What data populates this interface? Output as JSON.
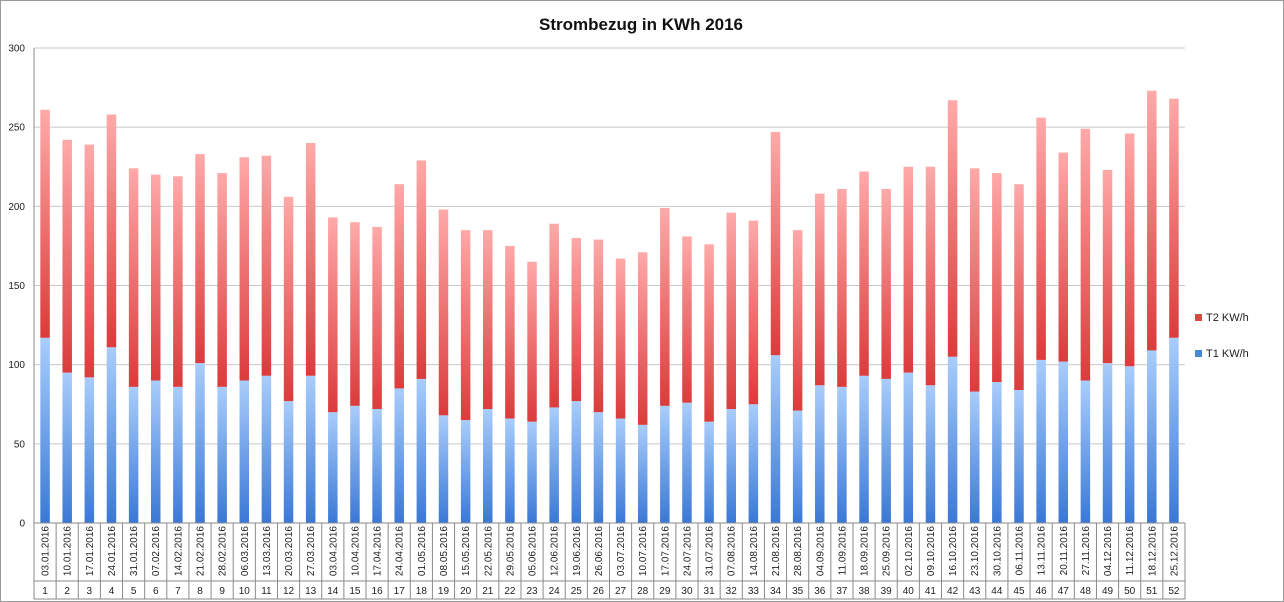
{
  "chart_data": {
    "type": "bar",
    "stacked": true,
    "title": "Strombezug in KWh 2016",
    "xlabel": "",
    "ylabel": "",
    "ylim": [
      0,
      300
    ],
    "yticks": [
      0,
      50,
      100,
      150,
      200,
      250,
      300
    ],
    "grid": true,
    "legend_position": "right",
    "categories": [
      "03.01.2016",
      "10.01.2016",
      "17.01.2016",
      "24.01.2016",
      "31.01.2016",
      "07.02.2016",
      "14.02.2016",
      "21.02.2016",
      "28.02.2016",
      "06.03.2016",
      "13.03.2016",
      "20.03.2016",
      "27.03.2016",
      "03.04.2016",
      "10.04.2016",
      "17.04.2016",
      "24.04.2016",
      "01.05.2016",
      "08.05.2016",
      "15.05.2016",
      "22.05.2016",
      "29.05.2016",
      "05.06.2016",
      "12.06.2016",
      "19.06.2016",
      "26.06.2016",
      "03.07.2016",
      "10.07.2016",
      "17.07.2016",
      "24.07.2016",
      "31.07.2016",
      "07.08.2016",
      "14.08.2016",
      "21.08.2016",
      "28.08.2016",
      "04.09.2016",
      "11.09.2016",
      "18.09.2016",
      "25.09.2016",
      "02.10.2016",
      "09.10.2016",
      "16.10.2016",
      "23.10.2016",
      "30.10.2016",
      "06.11.2016",
      "13.11.2016",
      "20.11.2016",
      "27.11.2016",
      "04.12.2016",
      "11.12.2016",
      "18.12.2016",
      "25.12.2016"
    ],
    "week_numbers": [
      "1",
      "2",
      "3",
      "4",
      "5",
      "6",
      "7",
      "8",
      "9",
      "10",
      "11",
      "12",
      "13",
      "14",
      "15",
      "16",
      "17",
      "18",
      "19",
      "20",
      "21",
      "22",
      "23",
      "24",
      "25",
      "26",
      "27",
      "28",
      "29",
      "30",
      "31",
      "32",
      "33",
      "34",
      "35",
      "36",
      "37",
      "38",
      "39",
      "40",
      "41",
      "42",
      "43",
      "44",
      "45",
      "46",
      "47",
      "48",
      "49",
      "50",
      "51",
      "52"
    ],
    "series": [
      {
        "name": "T1 KW/h",
        "color": "#4a86d8",
        "values": [
          117,
          95,
          92,
          111,
          86,
          90,
          86,
          101,
          86,
          90,
          93,
          77,
          93,
          70,
          74,
          72,
          85,
          91,
          68,
          65,
          72,
          66,
          64,
          73,
          77,
          70,
          66,
          62,
          74,
          76,
          64,
          72,
          75,
          106,
          71,
          87,
          86,
          93,
          91,
          95,
          87,
          105,
          83,
          89,
          84,
          103,
          102,
          90,
          101,
          99,
          109,
          117
        ]
      },
      {
        "name": "T2 KW/h",
        "color": "#e04444",
        "values": [
          144,
          147,
          147,
          147,
          138,
          130,
          133,
          132,
          135,
          141,
          139,
          129,
          147,
          123,
          116,
          115,
          129,
          138,
          130,
          120,
          113,
          109,
          101,
          116,
          103,
          109,
          101,
          109,
          125,
          105,
          112,
          124,
          116,
          141,
          114,
          121,
          125,
          129,
          120,
          130,
          138,
          162,
          141,
          132,
          130,
          153,
          132,
          159,
          122,
          147,
          164,
          151
        ]
      }
    ]
  }
}
